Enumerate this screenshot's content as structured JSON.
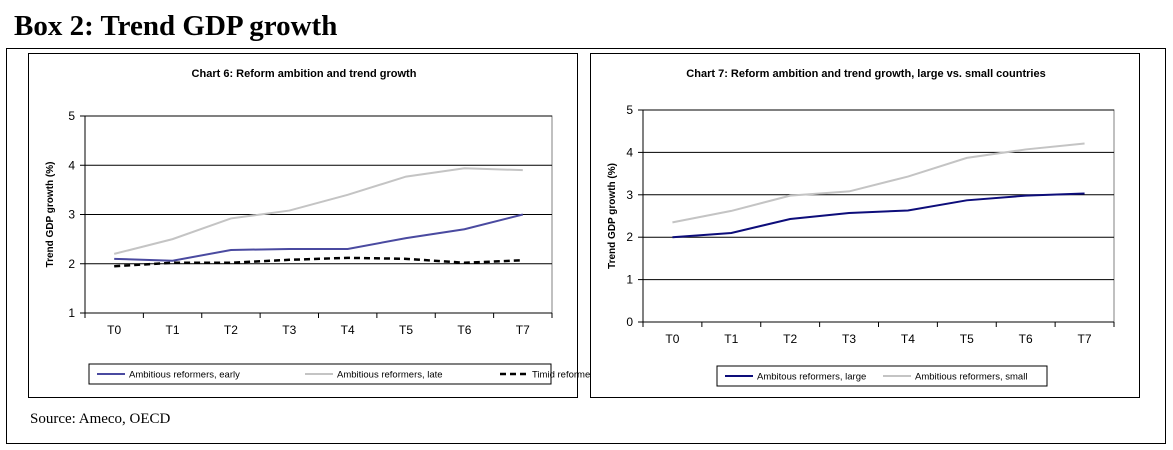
{
  "box": {
    "title": "Box 2: Trend GDP growth",
    "source": "Source: Ameco, OECD"
  },
  "chart_data": [
    {
      "type": "line",
      "title": "Chart 6: Reform ambition and trend growth",
      "ylabel": "Trend GDP growth (%)",
      "xlabel": "",
      "categories": [
        "T0",
        "T1",
        "T2",
        "T3",
        "T4",
        "T5",
        "T6",
        "T7"
      ],
      "ylim": [
        1,
        5
      ],
      "yticks": [
        1,
        2,
        3,
        4,
        5
      ],
      "grid": "horizontal",
      "legend": "bottom",
      "series": [
        {
          "name": "Ambitious reformers, early",
          "color": "#4a4aa0",
          "dash": "solid",
          "values": [
            2.1,
            2.06,
            2.28,
            2.3,
            2.3,
            2.52,
            2.7,
            3.0
          ]
        },
        {
          "name": "Ambitious reformers, late",
          "color": "#c4c4c4",
          "dash": "solid",
          "values": [
            2.2,
            2.5,
            2.92,
            3.08,
            3.4,
            3.77,
            3.94,
            3.9
          ]
        },
        {
          "name": "Timid reformers",
          "color": "#000000",
          "dash": "dashed",
          "values": [
            1.95,
            2.02,
            2.02,
            2.08,
            2.12,
            2.1,
            2.02,
            2.07
          ]
        }
      ]
    },
    {
      "type": "line",
      "title": "Chart 7: Reform ambition and trend growth, large vs. small countries",
      "ylabel": "Trend GDP growth (%)",
      "xlabel": "",
      "categories": [
        "T0",
        "T1",
        "T2",
        "T3",
        "T4",
        "T5",
        "T6",
        "T7"
      ],
      "ylim": [
        0,
        5
      ],
      "yticks": [
        0,
        1,
        2,
        3,
        4,
        5
      ],
      "grid": "horizontal",
      "legend": "bottom",
      "series": [
        {
          "name": "Ambitous reformers, large",
          "color": "#0d0d7a",
          "dash": "solid",
          "values": [
            2.0,
            2.1,
            2.43,
            2.57,
            2.63,
            2.87,
            2.98,
            3.03
          ]
        },
        {
          "name": "Ambitious reformers, small",
          "color": "#c4c4c4",
          "dash": "solid",
          "values": [
            2.35,
            2.62,
            2.98,
            3.08,
            3.43,
            3.87,
            4.07,
            4.21
          ]
        }
      ]
    }
  ]
}
